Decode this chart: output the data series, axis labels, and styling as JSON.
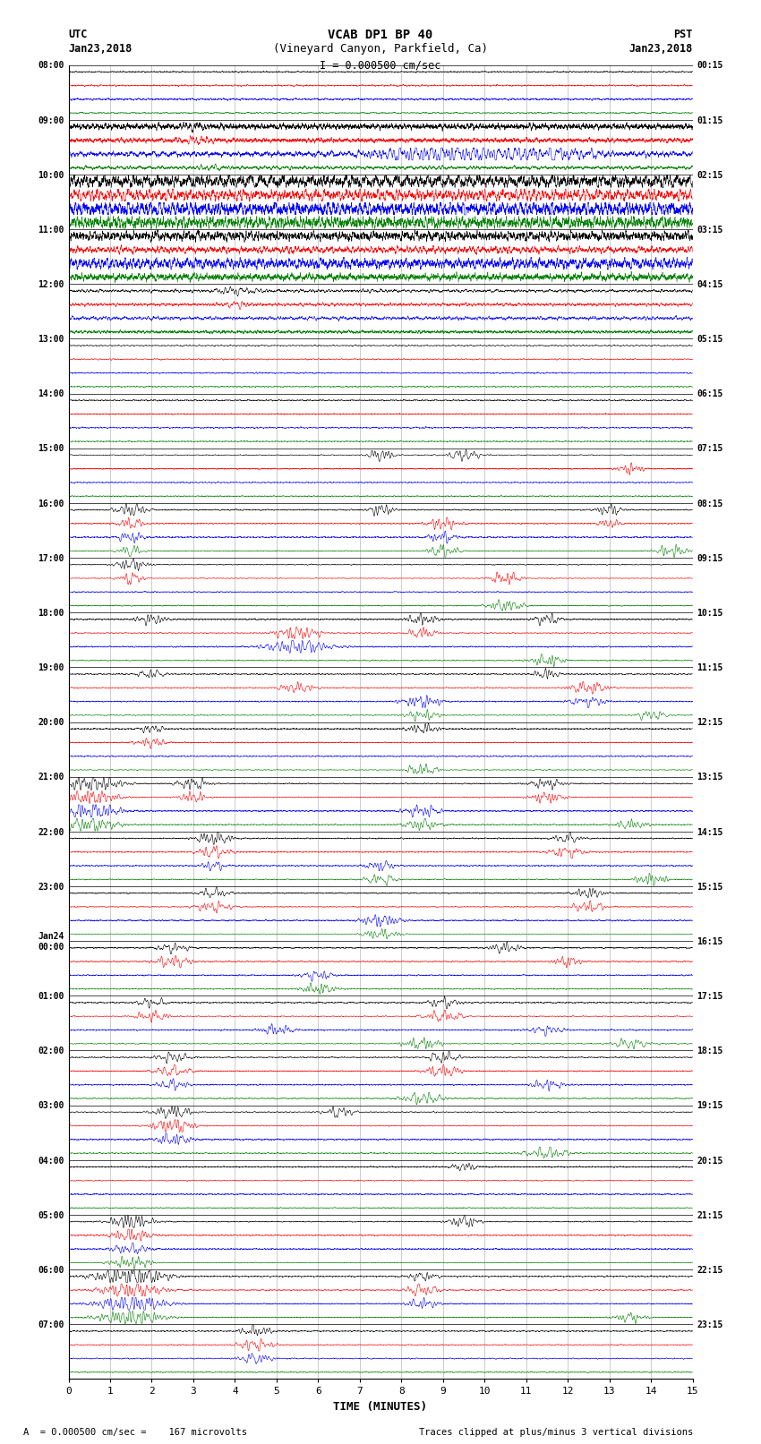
{
  "title_line1": "VCAB DP1 BP 40",
  "title_line2": "(Vineyard Canyon, Parkfield, Ca)",
  "scale_label": "I = 0.000500 cm/sec",
  "left_label_top": "UTC",
  "left_label_date": "Jan23,2018",
  "right_label_top": "PST",
  "right_label_date": "Jan23,2018",
  "bottom_label": "TIME (MINUTES)",
  "footer_left": "A  = 0.000500 cm/sec =    167 microvolts",
  "footer_right": "Traces clipped at plus/minus 3 vertical divisions",
  "utc_times": [
    "08:00",
    "09:00",
    "10:00",
    "11:00",
    "12:00",
    "13:00",
    "14:00",
    "15:00",
    "16:00",
    "17:00",
    "18:00",
    "19:00",
    "20:00",
    "21:00",
    "22:00",
    "23:00",
    "Jan24\n00:00",
    "01:00",
    "02:00",
    "03:00",
    "04:00",
    "05:00",
    "06:00",
    "07:00"
  ],
  "pst_times": [
    "00:15",
    "01:15",
    "02:15",
    "03:15",
    "04:15",
    "05:15",
    "06:15",
    "07:15",
    "08:15",
    "09:15",
    "10:15",
    "11:15",
    "12:15",
    "13:15",
    "14:15",
    "15:15",
    "16:15",
    "17:15",
    "18:15",
    "19:15",
    "20:15",
    "21:15",
    "22:15",
    "23:15"
  ],
  "n_rows": 24,
  "n_channels": 4,
  "trace_colors": [
    "black",
    "red",
    "blue",
    "green"
  ],
  "bg_color": "white",
  "xmin": 0,
  "xmax": 15,
  "minutes_ticks": [
    0,
    1,
    2,
    3,
    4,
    5,
    6,
    7,
    8,
    9,
    10,
    11,
    12,
    13,
    14,
    15
  ]
}
